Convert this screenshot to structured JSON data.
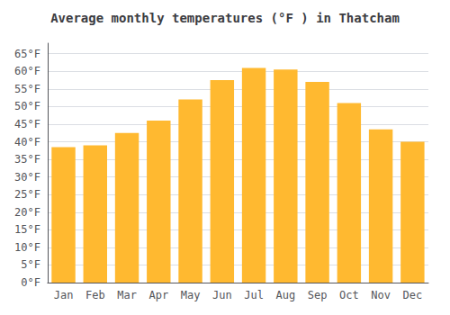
{
  "chart_data": {
    "type": "bar",
    "title": "Average monthly temperatures (°F ) in Thatcham",
    "categories": [
      "Jan",
      "Feb",
      "Mar",
      "Apr",
      "May",
      "Jun",
      "Jul",
      "Aug",
      "Sep",
      "Oct",
      "Nov",
      "Dec"
    ],
    "values": [
      38.5,
      39.0,
      42.5,
      46.0,
      52.0,
      57.5,
      61.0,
      60.5,
      57.0,
      51.0,
      43.5,
      40.0
    ],
    "color": "#FFB930",
    "ylim": [
      0,
      68
    ],
    "yticks": [
      {
        "value": 0,
        "label": "0°F"
      },
      {
        "value": 5,
        "label": "5°F"
      },
      {
        "value": 10,
        "label": "10°F"
      },
      {
        "value": 15,
        "label": "15°F"
      },
      {
        "value": 20,
        "label": "20°F"
      },
      {
        "value": 25,
        "label": "25°F"
      },
      {
        "value": 30,
        "label": "30°F"
      },
      {
        "value": 35,
        "label": "35°F"
      },
      {
        "value": 40,
        "label": "40°F"
      },
      {
        "value": 45,
        "label": "45°F"
      },
      {
        "value": 50,
        "label": "50°F"
      },
      {
        "value": 55,
        "label": "55°F"
      },
      {
        "value": 60,
        "label": "60°F"
      },
      {
        "value": 65,
        "label": "65°F"
      }
    ],
    "grid": true
  }
}
